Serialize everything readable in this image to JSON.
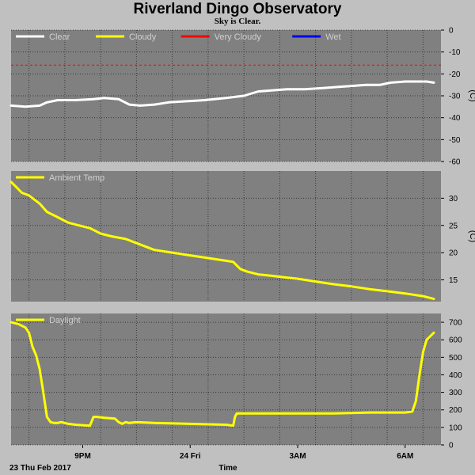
{
  "header": {
    "title": "Riverland Dingo Observatory",
    "subtitle": "Sky is Clear."
  },
  "footer": {
    "date_label": "23 Thu Feb 2017",
    "time_label": "Time"
  },
  "colors": {
    "panel_bg": "#808080",
    "page_bg": "#c0c0c0",
    "grid": "#000000",
    "clear": "#ffffff",
    "cloudy": "#ffff00",
    "very_cloudy": "#ff0000",
    "wet": "#0000ff"
  },
  "chart_data": [
    {
      "type": "line",
      "ylabel": "(C)",
      "ylim": [
        -60,
        0
      ],
      "yticks": [
        "0",
        "-10",
        "-20",
        "-30",
        "-40",
        "-50",
        "-60"
      ],
      "grid": true,
      "legend_placement": "top-left",
      "legend": [
        {
          "name": "Clear",
          "color": "#ffffff"
        },
        {
          "name": "Cloudy",
          "color": "#ffff00"
        },
        {
          "name": "Very Cloudy",
          "color": "#ff0000"
        },
        {
          "name": "Wet",
          "color": "#0000ff"
        }
      ],
      "threshold": {
        "value": -16,
        "color": "#ff0000",
        "dashed": true
      },
      "series": [
        {
          "name": "Clear",
          "color": "#ffffff",
          "x": [
            0,
            0.4,
            0.8,
            1.0,
            1.3,
            1.8,
            2.3,
            2.6,
            3.0,
            3.3,
            3.6,
            4.0,
            4.4,
            4.9,
            5.4,
            6.0,
            6.5,
            6.9,
            7.3,
            7.7,
            8.2,
            8.7,
            9.1,
            9.5,
            9.9,
            10.3,
            10.6,
            11.0,
            11.3,
            11.6,
            11.8
          ],
          "values": [
            -34.5,
            -35,
            -34.5,
            -33,
            -32,
            -32,
            -31.5,
            -31,
            -31.5,
            -34,
            -34.5,
            -34,
            -33,
            -32.5,
            -32,
            -31,
            -30,
            -28,
            -27.5,
            -27,
            -27,
            -26.5,
            -26,
            -25.5,
            -25,
            -25,
            -24,
            -23.5,
            -23.5,
            -23.5,
            -24
          ]
        }
      ]
    },
    {
      "type": "line",
      "ylabel": "(C)",
      "ylim": [
        11,
        35
      ],
      "yticks": [
        "30",
        "25",
        "20",
        "15"
      ],
      "grid": true,
      "legend_placement": "top-left",
      "legend": [
        {
          "name": "Ambient Temp",
          "color": "#ffff00"
        }
      ],
      "series": [
        {
          "name": "Ambient Temp",
          "color": "#ffff00",
          "x": [
            0,
            0.15,
            0.3,
            0.5,
            0.8,
            1.0,
            1.3,
            1.6,
            1.9,
            2.2,
            2.5,
            2.8,
            3.2,
            3.6,
            4.0,
            4.5,
            5.0,
            5.5,
            6.0,
            6.2,
            6.4,
            6.6,
            6.9,
            7.2,
            7.6,
            8.0,
            8.5,
            9.0,
            9.5,
            10.0,
            10.5,
            11.0,
            11.5,
            11.8
          ],
          "values": [
            33,
            32,
            31,
            30.5,
            29,
            27.5,
            26.5,
            25.5,
            25,
            24.5,
            23.5,
            23,
            22.5,
            21.5,
            20.5,
            20,
            19.5,
            19,
            18.5,
            18.3,
            17,
            16.5,
            16,
            15.8,
            15.5,
            15.2,
            14.7,
            14.2,
            13.8,
            13.3,
            12.9,
            12.5,
            12,
            11.5
          ]
        }
      ]
    },
    {
      "type": "line",
      "ylim": [
        0,
        750
      ],
      "yticks": [
        "700",
        "600",
        "500",
        "400",
        "300",
        "200",
        "100",
        "0"
      ],
      "grid": true,
      "legend_placement": "top-left",
      "legend": [
        {
          "name": "Daylight",
          "color": "#ffff00"
        }
      ],
      "series": [
        {
          "name": "Daylight",
          "color": "#ffff00",
          "x": [
            0,
            0.2,
            0.4,
            0.5,
            0.6,
            0.7,
            0.8,
            0.9,
            1.0,
            1.1,
            1.2,
            1.3,
            1.4,
            1.5,
            1.6,
            1.8,
            2.2,
            2.3,
            2.4,
            2.6,
            2.9,
            3.0,
            3.1,
            3.2,
            3.3,
            3.5,
            4.0,
            5.0,
            6.0,
            6.2,
            6.25,
            6.3,
            7.0,
            8.0,
            9.0,
            10.0,
            11.0,
            11.2,
            11.3,
            11.4,
            11.5,
            11.6,
            11.8
          ],
          "values": [
            700,
            690,
            670,
            640,
            560,
            510,
            430,
            300,
            160,
            130,
            125,
            125,
            130,
            125,
            120,
            115,
            110,
            160,
            160,
            155,
            150,
            130,
            120,
            130,
            125,
            130,
            125,
            120,
            115,
            110,
            160,
            180,
            180,
            180,
            180,
            185,
            185,
            190,
            250,
            400,
            530,
            600,
            640
          ]
        }
      ]
    }
  ],
  "x_axis": {
    "range": [
      0,
      12
    ],
    "ticks": [
      {
        "value": 2,
        "label": "9PM"
      },
      {
        "value": 5,
        "label": "24 Fri"
      },
      {
        "value": 8,
        "label": "3AM"
      },
      {
        "value": 11,
        "label": "6AM"
      }
    ]
  }
}
